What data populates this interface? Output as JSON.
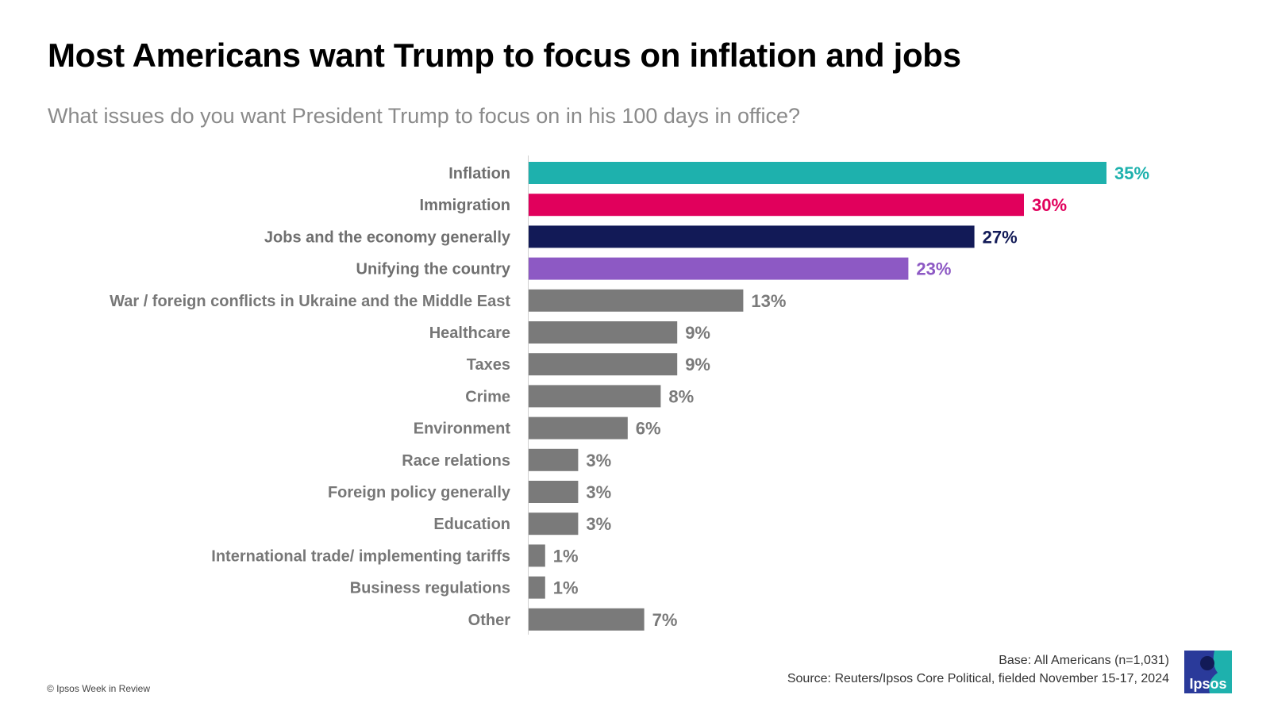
{
  "title": "Most Americans want Trump to focus on inflation and jobs",
  "subtitle": "What issues do you want President Trump to focus on in his 100 days in office?",
  "chart_data": {
    "type": "bar",
    "orientation": "horizontal",
    "title": "",
    "xlabel": "",
    "ylabel": "",
    "xlim": [
      0,
      35
    ],
    "grid": false,
    "legend": "none",
    "categories": [
      "Inflation",
      "Immigration",
      "Jobs and the economy generally",
      "Unifying the country",
      "War / foreign conflicts in Ukraine and the Middle East",
      "Healthcare",
      "Taxes",
      "Crime",
      "Environment",
      "Race relations",
      "Foreign policy generally",
      "Education",
      "International trade/ implementing tariffs",
      "Business regulations",
      "Other"
    ],
    "values": [
      35,
      30,
      27,
      23,
      13,
      9,
      9,
      8,
      6,
      3,
      3,
      3,
      1,
      1,
      7
    ],
    "value_labels": [
      "35%",
      "30%",
      "27%",
      "23%",
      "13%",
      "9%",
      "9%",
      "8%",
      "6%",
      "3%",
      "3%",
      "3%",
      "1%",
      "1%",
      "7%"
    ],
    "colors": [
      "#1eb1ad",
      "#e1005c",
      "#121a57",
      "#8d59c4",
      "#7a7a7a",
      "#7a7a7a",
      "#7a7a7a",
      "#7a7a7a",
      "#7a7a7a",
      "#7a7a7a",
      "#7a7a7a",
      "#7a7a7a",
      "#7a7a7a",
      "#7a7a7a",
      "#7a7a7a"
    ]
  },
  "footer": {
    "copyright": "© Ipsos Week in Review",
    "base": "Base: All Americans (n=1,031)",
    "source": "Source: Reuters/Ipsos Core Political, fielded November 15-17, 2024"
  },
  "logo": {
    "text": "Ipsos",
    "color": "#1eb1ad",
    "icon": "ipsos-logo-icon"
  }
}
